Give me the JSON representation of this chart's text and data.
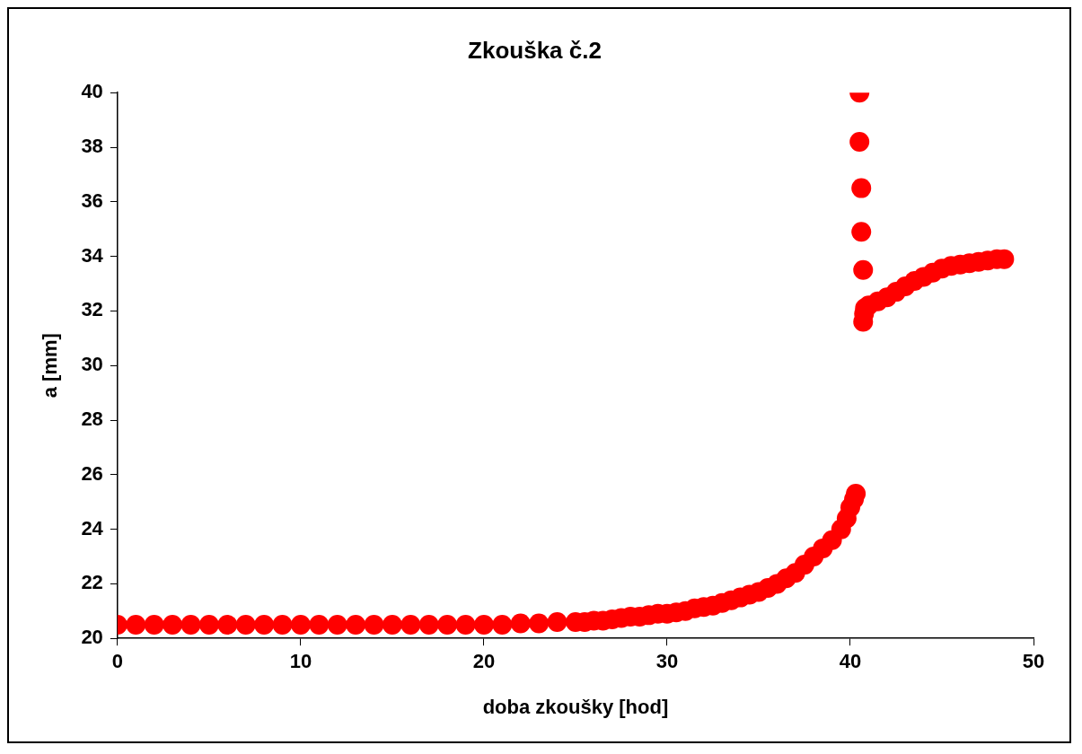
{
  "chart_data": {
    "type": "scatter",
    "title": "Zkouška č.2",
    "xlabel": "doba zkoušky [hod]",
    "ylabel": "a [mm]",
    "xlim": [
      0,
      50
    ],
    "xticks": [
      0,
      10,
      20,
      30,
      40,
      50
    ],
    "ylim": [
      20,
      40
    ],
    "yticks": [
      20,
      22,
      24,
      26,
      28,
      30,
      32,
      34,
      36,
      38,
      40
    ],
    "grid": false,
    "legend": false,
    "marker": "circle",
    "series": [
      {
        "color": "#ff0000",
        "x": [
          0,
          1,
          2,
          3,
          4,
          5,
          6,
          7,
          8,
          9,
          10,
          11,
          12,
          13,
          14,
          15,
          16,
          17,
          18,
          19,
          20,
          21,
          22,
          23,
          24,
          25,
          25.5,
          26,
          26.5,
          27,
          27.5,
          28,
          28.5,
          29,
          29.5,
          30,
          30.5,
          31,
          31.5,
          32,
          32.5,
          33,
          33.5,
          34,
          34.5,
          35,
          35.5,
          36,
          36.5,
          37,
          37.5,
          38,
          38.5,
          39,
          39.5,
          39.8,
          40,
          40.2,
          40.3,
          40.5,
          40.5,
          40.6,
          40.6,
          40.7,
          40.7,
          40.75,
          40.8,
          41,
          41.5,
          42,
          42.5,
          43,
          43.5,
          44,
          44.5,
          45,
          45.5,
          46,
          46.5,
          47,
          47.5,
          48,
          48.4
        ],
        "values": [
          20.5,
          20.5,
          20.5,
          20.5,
          20.5,
          20.5,
          20.5,
          20.5,
          20.5,
          20.5,
          20.5,
          20.5,
          20.5,
          20.5,
          20.5,
          20.5,
          20.5,
          20.5,
          20.5,
          20.5,
          20.5,
          20.5,
          20.55,
          20.55,
          20.6,
          20.6,
          20.6,
          20.65,
          20.65,
          20.7,
          20.75,
          20.8,
          20.8,
          20.85,
          20.9,
          20.9,
          20.95,
          21.0,
          21.1,
          21.15,
          21.2,
          21.3,
          21.4,
          21.5,
          21.6,
          21.7,
          21.85,
          22.0,
          22.2,
          22.4,
          22.7,
          23.0,
          23.3,
          23.6,
          24.0,
          24.4,
          24.8,
          25.1,
          25.3,
          40.0,
          38.2,
          36.5,
          34.9,
          33.5,
          31.6,
          31.9,
          32.1,
          32.2,
          32.35,
          32.5,
          32.7,
          32.9,
          33.1,
          33.25,
          33.4,
          33.55,
          33.65,
          33.7,
          33.75,
          33.8,
          33.85,
          33.9,
          33.9
        ]
      }
    ]
  }
}
